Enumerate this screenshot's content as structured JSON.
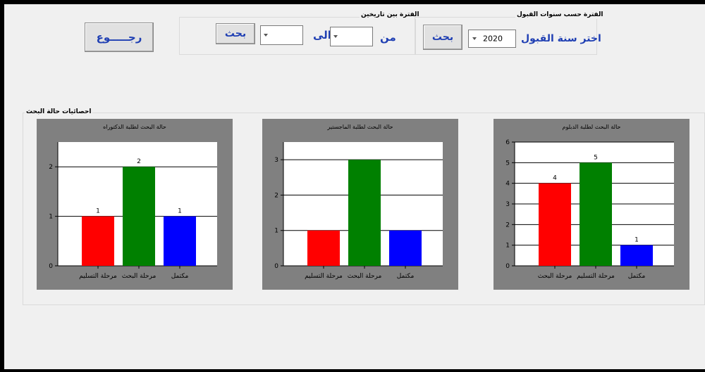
{
  "header": {
    "back_button": "رجـــــوع",
    "date_range": {
      "group_title": "الفترة بين تاريخين",
      "from_label": "من",
      "to_label": "الى",
      "from_value": "",
      "to_value": "",
      "search_button": "بحث"
    },
    "year_filter": {
      "group_title": "الفترة حسب سنوات القبول",
      "label": "اختر سنة القبول",
      "value": "2020",
      "search_button": "بحث"
    }
  },
  "stats_group": {
    "title": "احصائيات حالة البحث"
  },
  "colors": {
    "red": "#ff0000",
    "green": "#008000",
    "blue": "#0000ff",
    "panel": "#808080",
    "label_blue": "#1f3fb3"
  },
  "chart_data": [
    {
      "type": "bar",
      "title": "حالة البحث لطلبة الدكتوراه",
      "categories": [
        "مرحلة التسليم",
        "مرحلة البحث",
        "مكتمل"
      ],
      "values": [
        1,
        2,
        1
      ],
      "bar_colors": [
        "#ff0000",
        "#008000",
        "#0000ff"
      ],
      "ylim": [
        0,
        2.5
      ],
      "yticks": [
        0,
        1,
        2
      ],
      "data_labels": true,
      "grid": true
    },
    {
      "type": "bar",
      "title": "حالة البحث لطلبة الماجستير",
      "categories": [
        "مرحلة التسليم",
        "مرحلة البحث",
        "مكتمل"
      ],
      "values": [
        1,
        3,
        1
      ],
      "bar_colors": [
        "#ff0000",
        "#008000",
        "#0000ff"
      ],
      "ylim": [
        0,
        3.5
      ],
      "yticks": [
        0,
        1,
        2,
        3
      ],
      "data_labels": false,
      "grid": true
    },
    {
      "type": "bar",
      "title": "حالة البحث لطلبة الدبلوم",
      "categories": [
        "مرحلة البحث",
        "مرحلة التسليم",
        "مكتمل"
      ],
      "values": [
        4,
        5,
        1
      ],
      "bar_colors": [
        "#ff0000",
        "#008000",
        "#0000ff"
      ],
      "ylim": [
        0,
        6
      ],
      "yticks": [
        0,
        1,
        2,
        3,
        4,
        5,
        6
      ],
      "data_labels": true,
      "grid": true
    }
  ]
}
